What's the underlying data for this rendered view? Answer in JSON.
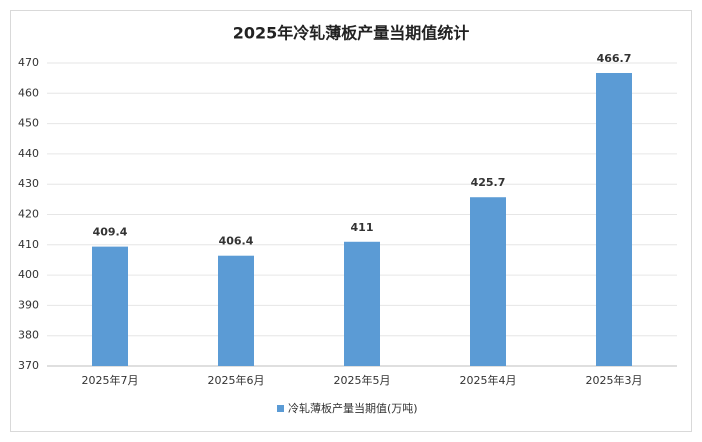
{
  "chart_data": {
    "type": "bar",
    "title": "2025年冷轧薄板产量当期值统计",
    "categories": [
      "2025年7月",
      "2025年6月",
      "2025年5月",
      "2025年4月",
      "2025年3月"
    ],
    "series": [
      {
        "name": "冷轧薄板产量当期值(万吨)",
        "color": "#5b9bd5",
        "values": [
          409.4,
          406.4,
          411,
          425.7,
          466.7
        ]
      }
    ],
    "ylim": [
      370,
      470
    ],
    "yticks": [
      370,
      380,
      390,
      400,
      410,
      420,
      430,
      440,
      450,
      460,
      470
    ],
    "grid": true,
    "legend": "bottom"
  }
}
